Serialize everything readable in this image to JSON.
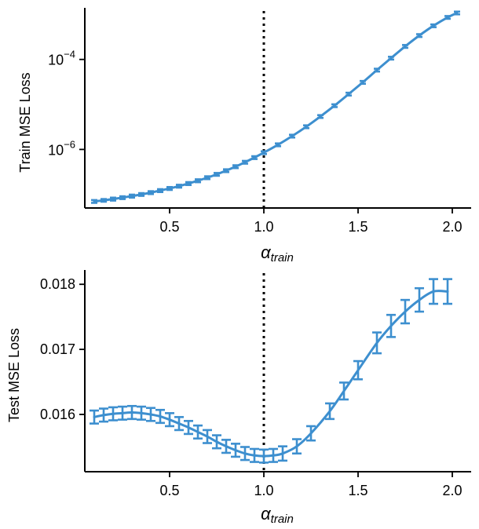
{
  "colors": {
    "series": "#3d8fcf",
    "axis": "#000000",
    "reference_line": "#000000"
  },
  "chart_data": [
    {
      "type": "line",
      "title": "",
      "xlabel": "α",
      "xlabel_subscript": "train",
      "ylabel": "Train MSE Loss",
      "yscale": "log",
      "xlim": [
        0.05,
        2.1
      ],
      "ylim": [
        5e-08,
        0.0014
      ],
      "x_ticks": [
        0.5,
        1.0,
        1.5,
        2.0
      ],
      "x_tick_labels": [
        "0.5",
        "1.0",
        "1.5",
        "2.0"
      ],
      "y_ticks": [
        1e-06,
        0.0001
      ],
      "y_tick_labels": [
        {
          "base": "10",
          "exp": "−6"
        },
        {
          "base": "10",
          "exp": "−4"
        }
      ],
      "reference_line_x": 1.0,
      "series": [
        {
          "name": "train",
          "x": [
            0.1,
            0.15,
            0.2,
            0.25,
            0.3,
            0.35,
            0.4,
            0.45,
            0.5,
            0.55,
            0.6,
            0.65,
            0.7,
            0.75,
            0.8,
            0.85,
            0.9,
            0.95,
            1.0,
            1.075,
            1.15,
            1.225,
            1.3,
            1.375,
            1.45,
            1.525,
            1.6,
            1.675,
            1.75,
            1.825,
            1.9,
            1.975,
            2.025
          ],
          "y": [
            7e-08,
            7.4e-08,
            7.9e-08,
            8.5e-08,
            9.2e-08,
            1e-07,
            1.1e-07,
            1.22e-07,
            1.36e-07,
            1.53e-07,
            1.75e-07,
            2.02e-07,
            2.36e-07,
            2.8e-07,
            3.38e-07,
            4.15e-07,
            5.2e-07,
            6.6e-07,
            8.5e-07,
            1.27e-06,
            1.98e-06,
            3.2e-06,
            5.4e-06,
            9.4e-06,
            1.7e-05,
            3.1e-05,
            5.8e-05,
            0.000107,
            0.000195,
            0.00034,
            0.00056,
            0.00086,
            0.00108
          ],
          "err": [
            5e-09,
            5e-09,
            6e-09,
            6e-09,
            7e-09,
            7e-09,
            8e-09,
            9e-09,
            1e-08,
            1.1e-08,
            1.3e-08,
            1.5e-08,
            1.7e-08,
            2e-08,
            2.4e-08,
            3e-08,
            3.7e-08,
            4.7e-08,
            6e-08,
            9e-08,
            1.4e-07,
            2.3e-07,
            3.8e-07,
            6.6e-07,
            1.2e-06,
            2.2e-06,
            4.1e-06,
            7.5e-06,
            1.4e-05,
            2.4e-05,
            3.9e-05,
            6e-05,
            7.5e-05
          ]
        }
      ]
    },
    {
      "type": "line",
      "title": "",
      "xlabel": "α",
      "xlabel_subscript": "train",
      "ylabel": "Test MSE Loss",
      "yscale": "linear",
      "xlim": [
        0.05,
        2.1
      ],
      "ylim": [
        0.01512,
        0.01822
      ],
      "x_ticks": [
        0.5,
        1.0,
        1.5,
        2.0
      ],
      "x_tick_labels": [
        "0.5",
        "1.0",
        "1.5",
        "2.0"
      ],
      "y_ticks": [
        0.016,
        0.017,
        0.018
      ],
      "y_tick_labels": [
        "0.016",
        "0.017",
        "0.018"
      ],
      "reference_line_x": 1.0,
      "series": [
        {
          "name": "test",
          "x": [
            0.1,
            0.15,
            0.2,
            0.25,
            0.3,
            0.35,
            0.4,
            0.45,
            0.5,
            0.55,
            0.6,
            0.65,
            0.7,
            0.75,
            0.8,
            0.85,
            0.9,
            0.95,
            1.0,
            1.05,
            1.1,
            1.175,
            1.25,
            1.35,
            1.425,
            1.5,
            1.6,
            1.675,
            1.75,
            1.825,
            1.9,
            1.975
          ],
          "y": [
            0.01596,
            0.01599,
            0.01601,
            0.01602,
            0.01603,
            0.01602,
            0.016,
            0.01597,
            0.01592,
            0.01586,
            0.0158,
            0.01573,
            0.01566,
            0.01558,
            0.01551,
            0.01545,
            0.0154,
            0.01537,
            0.01536,
            0.01537,
            0.0154,
            0.01551,
            0.01571,
            0.01605,
            0.01636,
            0.01668,
            0.0171,
            0.01736,
            0.01758,
            0.01776,
            0.01789,
            0.01789
          ],
          "err": [
            0.0001,
            0.0001,
            0.0001,
            0.0001,
            0.0001,
            0.0001,
            0.0001,
            0.0001,
            0.0001,
            0.0001,
            0.0001,
            0.0001,
            0.0001,
            0.0001,
            0.0001,
            0.0001,
            0.0001,
            0.0001,
            0.0001,
            0.0001,
            0.00011,
            0.00011,
            0.00011,
            0.00012,
            0.00013,
            0.00014,
            0.00016,
            0.00017,
            0.00018,
            0.00018,
            0.00019,
            0.00019
          ]
        }
      ]
    }
  ]
}
